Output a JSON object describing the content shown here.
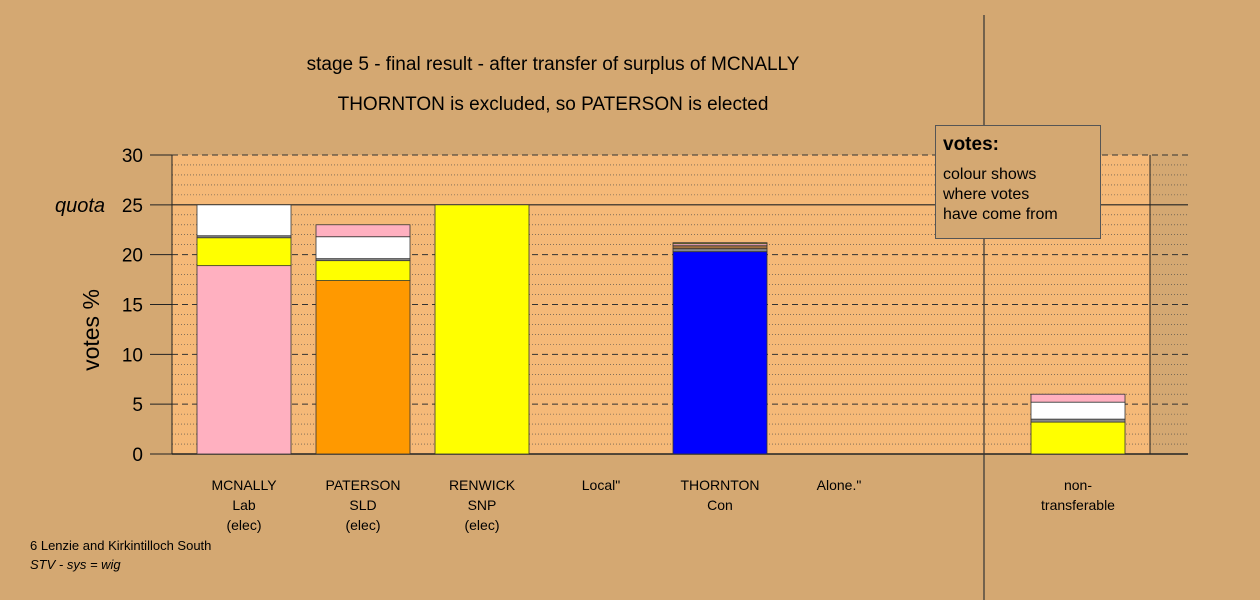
{
  "title_line1": "stage 5 - final result - after transfer of surplus of MCNALLY",
  "title_line2": "THORNTON is excluded, so PATERSON is elected",
  "footer_line1": "6 Lenzie and Kirkintilloch South",
  "footer_line2": "STV - sys = wig",
  "legend": {
    "heading": "votes:",
    "lines": [
      "colour shows",
      "where votes",
      "have come from"
    ]
  },
  "colors": {
    "background": "#d4a872",
    "plot_area": "#f5b978",
    "pink": "#ffb0c0",
    "white": "#ffffff",
    "yellow": "#ffff00",
    "orange": "#ff9900",
    "blue": "#0000ff",
    "brown": "#a07040",
    "grey": "#8a8a8a"
  },
  "chart_data": {
    "type": "bar",
    "stacked": true,
    "ylabel": "votes %",
    "ylim": [
      0,
      30
    ],
    "yticks": [
      "0",
      "5",
      "10",
      "15",
      "20",
      "25",
      "30"
    ],
    "quota_label": "quota",
    "quota_value": 25,
    "categories": [
      {
        "lines": [
          "MCNALLY",
          "Lab",
          "(elec)"
        ],
        "segments": [
          {
            "color": "pink",
            "value": 18.9
          },
          {
            "color": "yellow",
            "value": 2.8
          },
          {
            "color": "grey",
            "value": 0.2
          },
          {
            "color": "white",
            "value": 3.1
          }
        ]
      },
      {
        "lines": [
          "PATERSON",
          "SLD",
          "(elec)"
        ],
        "segments": [
          {
            "color": "orange",
            "value": 17.4
          },
          {
            "color": "yellow",
            "value": 2.0
          },
          {
            "color": "grey",
            "value": 0.2
          },
          {
            "color": "white",
            "value": 2.2
          },
          {
            "color": "pink",
            "value": 1.2
          }
        ]
      },
      {
        "lines": [
          "RENWICK",
          "SNP",
          "(elec)"
        ],
        "segments": [
          {
            "color": "yellow",
            "value": 25.0
          }
        ]
      },
      {
        "lines": [
          "Local\""
        ],
        "segments": []
      },
      {
        "lines": [
          "THORNTON",
          "Con"
        ],
        "segments": [
          {
            "color": "blue",
            "value": 20.3
          },
          {
            "color": "grey",
            "value": 0.3
          },
          {
            "color": "brown",
            "value": 0.3
          },
          {
            "color": "pink",
            "value": 0.2
          },
          {
            "color": "yellow",
            "value": 0.1
          }
        ]
      },
      {
        "lines": [
          "Alone.\""
        ],
        "segments": []
      },
      {
        "lines": [
          "non-",
          "transferable"
        ],
        "segments": [
          {
            "color": "yellow",
            "value": 3.2
          },
          {
            "color": "grey",
            "value": 0.3
          },
          {
            "color": "white",
            "value": 1.7
          },
          {
            "color": "pink",
            "value": 0.8
          }
        ]
      }
    ]
  }
}
